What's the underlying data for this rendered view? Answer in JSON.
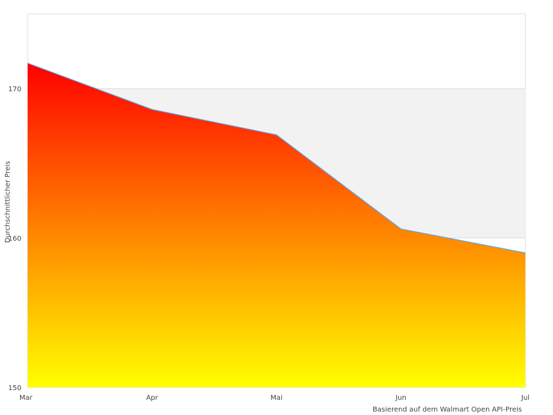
{
  "chart_data": {
    "type": "area",
    "categories": [
      "Mar",
      "Apr",
      "Mai",
      "Jun",
      "Jul"
    ],
    "series": [
      {
        "name": "Durchschnittlicher Preis",
        "values": [
          171.7,
          168.6,
          166.9,
          160.6,
          159.0
        ]
      }
    ],
    "ylabel": "Durchschnittlicher Preis",
    "xlabel": "Basierend auf dem Walmart Open API-Preis",
    "ylim": [
      150,
      175
    ],
    "yticks": [
      150,
      160,
      170
    ],
    "grid": true,
    "colors": {
      "fill_top": "#ff0000",
      "fill_bottom": "#ffff00",
      "line": "#5aa5f0",
      "band": "#f2f2f2"
    }
  }
}
